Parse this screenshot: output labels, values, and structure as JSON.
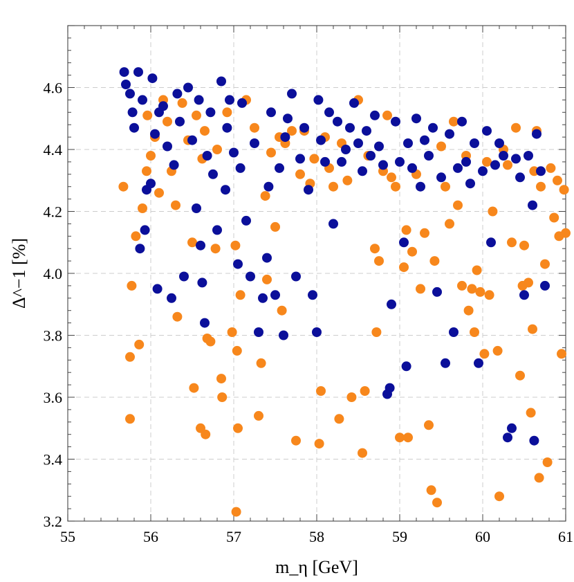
{
  "chart_data": {
    "type": "scatter",
    "title": "",
    "xlabel": "m_η [GeV]",
    "ylabel": "Δ^−1 [%]",
    "xlim": [
      55,
      61
    ],
    "ylim": [
      3.2,
      4.8
    ],
    "xticks": [
      55,
      56,
      57,
      58,
      59,
      60,
      61
    ],
    "yticks": [
      3.2,
      3.4,
      3.6,
      3.8,
      4.0,
      4.2,
      4.4,
      4.6
    ],
    "xtick_labels": [
      "55",
      "56",
      "57",
      "58",
      "59",
      "60",
      "61"
    ],
    "ytick_labels": [
      "3.2",
      "3.4",
      "3.6",
      "3.8",
      "4.0",
      "4.2",
      "4.4",
      "4.6"
    ],
    "grid": true,
    "legend": "none",
    "colors": {
      "orange": "#f7871c",
      "navy": "#0b0f9a"
    },
    "series": [
      {
        "color": "orange",
        "points": [
          [
            55.67,
            4.28
          ],
          [
            55.75,
            3.53
          ],
          [
            55.75,
            3.73
          ],
          [
            55.77,
            3.96
          ],
          [
            55.82,
            4.12
          ],
          [
            55.86,
            3.77
          ],
          [
            55.9,
            4.21
          ],
          [
            55.95,
            4.33
          ],
          [
            55.96,
            4.51
          ],
          [
            56.0,
            4.38
          ],
          [
            56.05,
            4.44
          ],
          [
            56.1,
            4.26
          ],
          [
            56.15,
            4.56
          ],
          [
            56.2,
            4.49
          ],
          [
            56.25,
            4.33
          ],
          [
            56.3,
            4.22
          ],
          [
            56.32,
            3.86
          ],
          [
            56.38,
            4.55
          ],
          [
            56.45,
            4.43
          ],
          [
            56.5,
            4.1
          ],
          [
            56.52,
            3.63
          ],
          [
            56.55,
            4.51
          ],
          [
            56.6,
            3.5
          ],
          [
            56.62,
            4.37
          ],
          [
            56.65,
            4.46
          ],
          [
            56.66,
            3.48
          ],
          [
            56.68,
            3.79
          ],
          [
            56.72,
            3.78
          ],
          [
            56.78,
            4.08
          ],
          [
            56.8,
            4.4
          ],
          [
            56.85,
            3.66
          ],
          [
            56.86,
            3.6
          ],
          [
            56.92,
            4.52
          ],
          [
            56.98,
            3.81
          ],
          [
            57.02,
            4.09
          ],
          [
            57.03,
            3.23
          ],
          [
            57.04,
            3.75
          ],
          [
            57.05,
            3.5
          ],
          [
            57.08,
            3.93
          ],
          [
            57.15,
            4.56
          ],
          [
            57.25,
            4.47
          ],
          [
            57.3,
            3.54
          ],
          [
            57.33,
            3.71
          ],
          [
            57.38,
            4.25
          ],
          [
            57.4,
            3.98
          ],
          [
            57.45,
            4.39
          ],
          [
            57.5,
            4.15
          ],
          [
            57.55,
            4.44
          ],
          [
            57.58,
            3.88
          ],
          [
            57.62,
            4.42
          ],
          [
            57.7,
            4.46
          ],
          [
            57.75,
            3.46
          ],
          [
            57.8,
            4.32
          ],
          [
            57.85,
            4.46
          ],
          [
            57.92,
            4.29
          ],
          [
            57.97,
            4.37
          ],
          [
            58.03,
            3.45
          ],
          [
            58.05,
            3.62
          ],
          [
            58.1,
            4.44
          ],
          [
            58.15,
            4.34
          ],
          [
            58.2,
            4.28
          ],
          [
            58.27,
            3.53
          ],
          [
            58.3,
            4.42
          ],
          [
            58.37,
            4.3
          ],
          [
            58.42,
            3.6
          ],
          [
            58.5,
            4.56
          ],
          [
            58.55,
            3.42
          ],
          [
            58.58,
            3.62
          ],
          [
            58.62,
            4.38
          ],
          [
            58.7,
            4.08
          ],
          [
            58.72,
            3.81
          ],
          [
            58.75,
            4.04
          ],
          [
            58.8,
            4.33
          ],
          [
            58.85,
            4.51
          ],
          [
            58.9,
            4.31
          ],
          [
            58.95,
            4.28
          ],
          [
            59.0,
            3.47
          ],
          [
            59.05,
            4.02
          ],
          [
            59.08,
            4.14
          ],
          [
            59.1,
            3.47
          ],
          [
            59.15,
            4.07
          ],
          [
            59.2,
            4.32
          ],
          [
            59.25,
            3.95
          ],
          [
            59.3,
            4.13
          ],
          [
            59.35,
            3.51
          ],
          [
            59.38,
            3.3
          ],
          [
            59.42,
            4.04
          ],
          [
            59.45,
            3.26
          ],
          [
            59.5,
            4.41
          ],
          [
            59.55,
            4.28
          ],
          [
            59.6,
            4.16
          ],
          [
            59.65,
            4.49
          ],
          [
            59.7,
            4.22
          ],
          [
            59.75,
            3.96
          ],
          [
            59.8,
            4.38
          ],
          [
            59.83,
            3.88
          ],
          [
            59.87,
            3.95
          ],
          [
            59.9,
            3.81
          ],
          [
            59.93,
            4.01
          ],
          [
            59.97,
            3.94
          ],
          [
            60.02,
            3.74
          ],
          [
            60.05,
            4.36
          ],
          [
            60.08,
            3.93
          ],
          [
            60.12,
            4.2
          ],
          [
            60.18,
            3.75
          ],
          [
            60.2,
            3.28
          ],
          [
            60.25,
            4.4
          ],
          [
            60.3,
            4.35
          ],
          [
            60.35,
            4.1
          ],
          [
            60.4,
            4.47
          ],
          [
            60.45,
            3.67
          ],
          [
            60.48,
            3.96
          ],
          [
            60.5,
            4.09
          ],
          [
            60.55,
            3.97
          ],
          [
            60.58,
            3.55
          ],
          [
            60.6,
            3.82
          ],
          [
            60.62,
            4.33
          ],
          [
            60.65,
            4.46
          ],
          [
            60.68,
            3.34
          ],
          [
            60.7,
            4.28
          ],
          [
            60.75,
            4.03
          ],
          [
            60.78,
            3.39
          ],
          [
            60.82,
            4.34
          ],
          [
            60.86,
            4.18
          ],
          [
            60.9,
            4.3
          ],
          [
            60.92,
            4.12
          ],
          [
            60.95,
            3.74
          ],
          [
            60.98,
            4.27
          ],
          [
            61.0,
            4.13
          ]
        ]
      },
      {
        "color": "navy",
        "points": [
          [
            55.68,
            4.65
          ],
          [
            55.7,
            4.61
          ],
          [
            55.75,
            4.58
          ],
          [
            55.78,
            4.52
          ],
          [
            55.8,
            4.47
          ],
          [
            55.85,
            4.65
          ],
          [
            55.87,
            4.08
          ],
          [
            55.9,
            4.56
          ],
          [
            55.93,
            4.14
          ],
          [
            55.95,
            4.27
          ],
          [
            56.0,
            4.29
          ],
          [
            56.02,
            4.63
          ],
          [
            56.05,
            4.45
          ],
          [
            56.08,
            3.95
          ],
          [
            56.1,
            4.52
          ],
          [
            56.15,
            4.54
          ],
          [
            56.2,
            4.41
          ],
          [
            56.25,
            3.92
          ],
          [
            56.28,
            4.35
          ],
          [
            56.32,
            4.58
          ],
          [
            56.35,
            4.49
          ],
          [
            56.4,
            3.99
          ],
          [
            56.45,
            4.6
          ],
          [
            56.5,
            4.43
          ],
          [
            56.55,
            4.21
          ],
          [
            56.58,
            4.56
          ],
          [
            56.6,
            4.09
          ],
          [
            56.62,
            3.97
          ],
          [
            56.65,
            3.84
          ],
          [
            56.68,
            4.38
          ],
          [
            56.72,
            4.52
          ],
          [
            56.75,
            4.32
          ],
          [
            56.8,
            4.14
          ],
          [
            56.85,
            4.62
          ],
          [
            56.9,
            4.27
          ],
          [
            56.92,
            4.47
          ],
          [
            56.95,
            4.56
          ],
          [
            57.0,
            4.39
          ],
          [
            57.05,
            4.03
          ],
          [
            57.08,
            4.34
          ],
          [
            57.1,
            4.55
          ],
          [
            57.15,
            4.17
          ],
          [
            57.2,
            3.99
          ],
          [
            57.25,
            4.42
          ],
          [
            57.3,
            3.81
          ],
          [
            57.35,
            3.92
          ],
          [
            57.4,
            4.05
          ],
          [
            57.42,
            4.28
          ],
          [
            57.45,
            4.52
          ],
          [
            57.5,
            3.93
          ],
          [
            57.55,
            4.34
          ],
          [
            57.6,
            3.8
          ],
          [
            57.62,
            4.44
          ],
          [
            57.65,
            4.5
          ],
          [
            57.7,
            4.58
          ],
          [
            57.75,
            3.99
          ],
          [
            57.8,
            4.37
          ],
          [
            57.85,
            4.47
          ],
          [
            57.9,
            4.27
          ],
          [
            57.95,
            3.93
          ],
          [
            58.0,
            3.81
          ],
          [
            58.02,
            4.56
          ],
          [
            58.05,
            4.43
          ],
          [
            58.1,
            4.36
          ],
          [
            58.15,
            4.52
          ],
          [
            58.2,
            4.16
          ],
          [
            58.25,
            4.49
          ],
          [
            58.3,
            4.36
          ],
          [
            58.35,
            4.4
          ],
          [
            58.4,
            4.47
          ],
          [
            58.45,
            4.55
          ],
          [
            58.5,
            4.42
          ],
          [
            58.55,
            4.33
          ],
          [
            58.6,
            4.46
          ],
          [
            58.65,
            4.38
          ],
          [
            58.7,
            4.51
          ],
          [
            58.75,
            4.41
          ],
          [
            58.8,
            4.35
          ],
          [
            58.85,
            3.61
          ],
          [
            58.88,
            3.63
          ],
          [
            58.9,
            3.9
          ],
          [
            58.95,
            4.49
          ],
          [
            59.0,
            4.36
          ],
          [
            59.05,
            4.1
          ],
          [
            59.08,
            3.7
          ],
          [
            59.1,
            4.42
          ],
          [
            59.15,
            4.34
          ],
          [
            59.2,
            4.5
          ],
          [
            59.25,
            4.28
          ],
          [
            59.3,
            4.43
          ],
          [
            59.35,
            4.38
          ],
          [
            59.4,
            4.47
          ],
          [
            59.45,
            3.94
          ],
          [
            59.5,
            4.31
          ],
          [
            59.55,
            3.71
          ],
          [
            59.6,
            4.45
          ],
          [
            59.65,
            3.81
          ],
          [
            59.7,
            4.34
          ],
          [
            59.75,
            4.49
          ],
          [
            59.8,
            4.36
          ],
          [
            59.85,
            4.29
          ],
          [
            59.9,
            4.42
          ],
          [
            59.95,
            3.71
          ],
          [
            60.0,
            4.33
          ],
          [
            60.05,
            4.46
          ],
          [
            60.1,
            4.1
          ],
          [
            60.15,
            4.35
          ],
          [
            60.2,
            4.42
          ],
          [
            60.25,
            4.38
          ],
          [
            60.3,
            3.47
          ],
          [
            60.35,
            3.5
          ],
          [
            60.4,
            4.37
          ],
          [
            60.45,
            4.31
          ],
          [
            60.5,
            3.93
          ],
          [
            60.55,
            4.38
          ],
          [
            60.6,
            4.22
          ],
          [
            60.62,
            3.46
          ],
          [
            60.65,
            4.45
          ],
          [
            60.7,
            4.33
          ],
          [
            60.75,
            3.96
          ]
        ]
      }
    ]
  }
}
